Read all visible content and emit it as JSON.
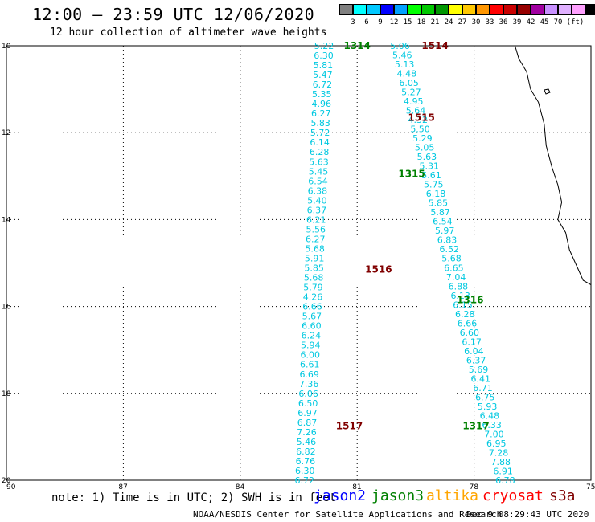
{
  "header": {
    "title": "12:00 — 23:59 UTC 12/06/2020",
    "subtitle": "12 hour collection of altimeter wave heights"
  },
  "colorscale": {
    "colors": [
      "#808080",
      "#00ffff",
      "#00c8ff",
      "#0000ff",
      "#00a0ff",
      "#00ff00",
      "#00c800",
      "#009600",
      "#ffff00",
      "#ffc800",
      "#ff9600",
      "#ff0000",
      "#c80000",
      "#960000",
      "#a000a0",
      "#c890ff",
      "#e0b0ff",
      "#ffa0ff",
      "#000000"
    ],
    "labels": [
      "3",
      "6",
      "9",
      "12",
      "15",
      "18",
      "21",
      "24",
      "27",
      "30",
      "33",
      "36",
      "39",
      "42",
      "45",
      "70",
      "(ft)"
    ]
  },
  "axes": {
    "lat_labels": [
      "10",
      "12",
      "14",
      "16",
      "18",
      "20"
    ],
    "lon_labels": [
      "90",
      "87",
      "84",
      "81",
      "78",
      "75"
    ],
    "lat_range": [
      -20,
      -10
    ],
    "lon_range": [
      -90,
      -75
    ]
  },
  "passes": [
    {
      "id": "1314",
      "color": "#008000",
      "lat": -10.0,
      "lon": -81.0
    },
    {
      "id": "1514",
      "color": "#800000",
      "lat": -10.0,
      "lon": -79.0
    },
    {
      "id": "1515",
      "color": "#800000",
      "lat": -11.65,
      "lon": -79.35
    },
    {
      "id": "1315",
      "color": "#008000",
      "lat": -12.95,
      "lon": -79.6
    },
    {
      "id": "1516",
      "color": "#800000",
      "lat": -15.15,
      "lon": -80.45
    },
    {
      "id": "1316",
      "color": "#008000",
      "lat": -15.85,
      "lon": -78.1
    },
    {
      "id": "1517",
      "color": "#800000",
      "lat": -18.75,
      "lon": -81.2
    },
    {
      "id": "1317",
      "color": "#008000",
      "lat": -18.75,
      "lon": -77.95
    }
  ],
  "tracks": [
    {
      "name": "track-a",
      "start": [
        -10.0,
        -81.85
      ],
      "end": [
        -20.0,
        -82.35
      ],
      "values": [
        "5.22",
        "6.30",
        "5.81",
        "5.47",
        "6.72",
        "5.35",
        "4.96",
        "6.27",
        "5.83",
        "5.72",
        "6.14",
        "6.28",
        "5.63",
        "5.45",
        "6.54",
        "6.38",
        "5.40",
        "6.37",
        "6.21",
        "5.56",
        "6.27",
        "5.68",
        "5.91",
        "5.85",
        "5.68",
        "5.79",
        "4.26",
        "6.66",
        "5.67",
        "6.60",
        "6.24",
        "5.94",
        "6.00",
        "6.61",
        "6.69",
        "7.36",
        "6.06",
        "6.50",
        "6.97",
        "6.87",
        "7.26",
        "5.46",
        "6.82",
        "6.76",
        "6.30",
        "6.72"
      ]
    },
    {
      "name": "track-b",
      "start": [
        -10.0,
        -79.9
      ],
      "end": [
        -20.0,
        -77.2
      ],
      "values": [
        "5.06",
        "5.46",
        "5.13",
        "4.48",
        "6.05",
        "5.27",
        "4.95",
        "5.64",
        "4.32",
        "5.50",
        "5.29",
        "5.05",
        "5.63",
        "5.31",
        "5.61",
        "5.75",
        "6.18",
        "5.85",
        "5.87",
        "6.54",
        "5.97",
        "6.83",
        "6.52",
        "5.68",
        "6.65",
        "7.04",
        "6.88",
        "6.13",
        "6.15",
        "6.28",
        "6.66",
        "6.60",
        "6.17",
        "6.04",
        "6.37",
        "5.69",
        "6.41",
        "6.71",
        "6.75",
        "5.93",
        "6.48",
        "6.33",
        "7.00",
        "6.95",
        "7.28",
        "7.88",
        "6.91",
        "6.78"
      ]
    }
  ],
  "coastline": {
    "color": "#000000",
    "points": [
      [
        -10.0,
        -76.95
      ],
      [
        -10.3,
        -76.85
      ],
      [
        -10.6,
        -76.65
      ],
      [
        -11.0,
        -76.55
      ],
      [
        -11.3,
        -76.35
      ],
      [
        -11.8,
        -76.2
      ],
      [
        -12.3,
        -76.15
      ],
      [
        -12.8,
        -76.0
      ],
      [
        -13.2,
        -75.85
      ],
      [
        -13.6,
        -75.75
      ],
      [
        -14.0,
        -75.85
      ],
      [
        -14.3,
        -75.65
      ],
      [
        -14.7,
        -75.55
      ],
      [
        -15.0,
        -75.4
      ],
      [
        -15.4,
        -75.2
      ],
      [
        -15.5,
        -75.0
      ]
    ]
  },
  "note": "note: 1) Time is in UTC; 2) SWH is in feet",
  "satellites": [
    {
      "name": "jason2",
      "color": "#0000ff"
    },
    {
      "name": "jason3",
      "color": "#008000"
    },
    {
      "name": "altika",
      "color": "#ffa500"
    },
    {
      "name": "cryosat",
      "color": "#ff0000"
    },
    {
      "name": "s3a",
      "color": "#800000"
    }
  ],
  "credit": "NOAA/NESDIS Center for Satellite Applications and Research",
  "timestamp": "Dec  9 08:29:43 UTC 2020",
  "track_value_color": "#00c8e0"
}
